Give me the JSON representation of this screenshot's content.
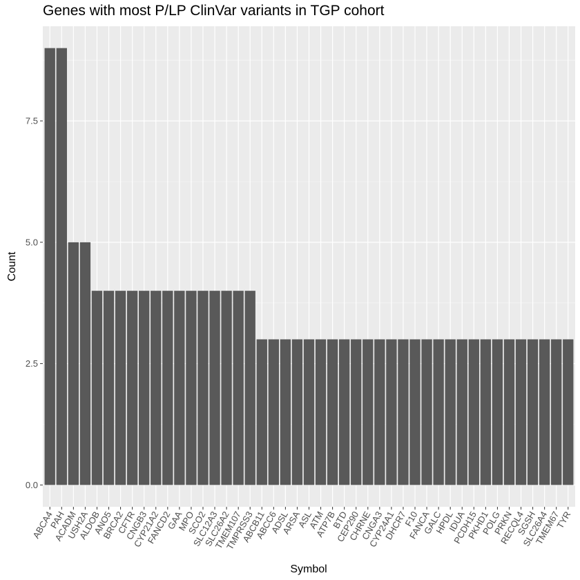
{
  "chart_data": {
    "type": "bar",
    "title": "Genes with most P/LP ClinVar variants in TGP cohort",
    "xlabel": "Symbol",
    "ylabel": "Count",
    "ylim": [
      -0.45,
      9.45
    ],
    "yticks": [
      0.0,
      2.5,
      5.0,
      7.5
    ],
    "ytick_labels": [
      "0.0",
      "2.5",
      "5.0",
      "7.5"
    ],
    "grid": true,
    "legend": "none",
    "categories": [
      "ABCA4",
      "PAH",
      "ACADM",
      "USH2A",
      "ALDOB",
      "ANO5",
      "BRCA2",
      "CFTR",
      "CNGB3",
      "CYP21A2",
      "FANCD2",
      "GAA",
      "MPO",
      "SCO2",
      "SLC12A3",
      "SLC26A2",
      "TMEM107",
      "TMPRSS3",
      "ABCB11",
      "ABCC6",
      "ADSL",
      "ARSA",
      "ASL",
      "ATM",
      "ATP7B",
      "BTD",
      "CEP290",
      "CHRNE",
      "CNGA3",
      "CYP24A1",
      "DHCR7",
      "F10",
      "FANCA",
      "GALC",
      "HPDL",
      "IDUA",
      "PCDH15",
      "PKHD1",
      "POLG",
      "PRKN",
      "RECQL4",
      "SGSH",
      "SLC26A4",
      "TMEM67",
      "TYR"
    ],
    "values": [
      9,
      9,
      5,
      5,
      4,
      4,
      4,
      4,
      4,
      4,
      4,
      4,
      4,
      4,
      4,
      4,
      4,
      4,
      3,
      3,
      3,
      3,
      3,
      3,
      3,
      3,
      3,
      3,
      3,
      3,
      3,
      3,
      3,
      3,
      3,
      3,
      3,
      3,
      3,
      3,
      3,
      3,
      3,
      3,
      3
    ],
    "colors": {
      "bar": "#595959",
      "panel": "#ebebeb",
      "grid_major": "#ffffff",
      "grid_minor": "#f5f5f5",
      "tick_text": "#4d4d4d",
      "tick_mark": "#333333"
    }
  }
}
